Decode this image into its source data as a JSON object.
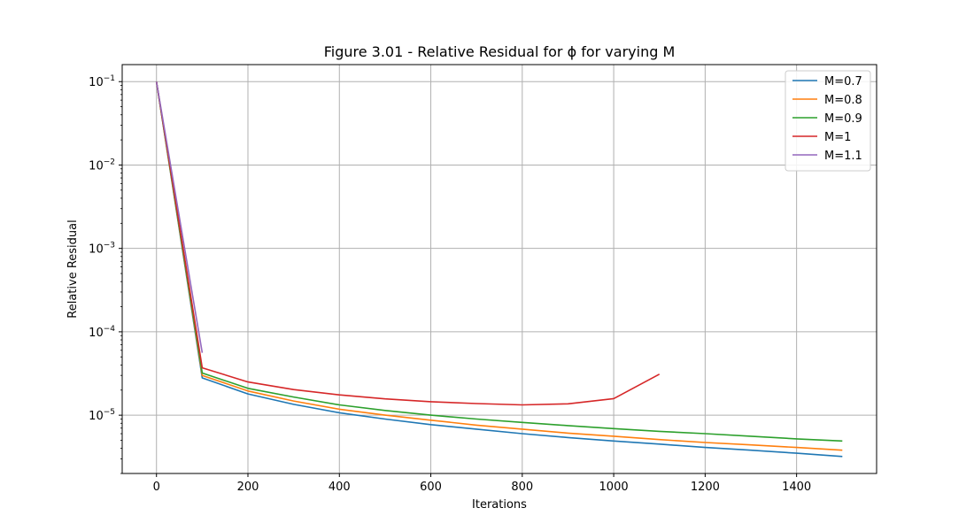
{
  "chart_data": {
    "type": "line",
    "title": "Figure 3.01 - Relative Residual for ϕ for varying M",
    "xlabel": "Iterations",
    "ylabel": "Relative Residual",
    "xlim": [
      -75,
      1575
    ],
    "ylim": [
      2e-06,
      0.16
    ],
    "yscale": "log",
    "grid": true,
    "legend_position": "top-right",
    "xticks": [
      0,
      200,
      400,
      600,
      800,
      1000,
      1200,
      1400
    ],
    "yticks": [
      {
        "value": 1e-05,
        "base": "10",
        "exp": "−5"
      },
      {
        "value": 0.0001,
        "base": "10",
        "exp": "−4"
      },
      {
        "value": 0.001,
        "base": "10",
        "exp": "−3"
      },
      {
        "value": 0.01,
        "base": "10",
        "exp": "−2"
      },
      {
        "value": 0.1,
        "base": "10",
        "exp": "−1"
      }
    ],
    "series": [
      {
        "name": "M=0.7",
        "color": "#1f77b4",
        "x": [
          0,
          100,
          200,
          300,
          400,
          500,
          600,
          700,
          800,
          900,
          1000,
          1100,
          1200,
          1300,
          1400,
          1500
        ],
        "y": [
          0.1,
          2.8e-05,
          1.8e-05,
          1.35e-05,
          1.07e-05,
          9e-06,
          7.7e-06,
          6.8e-06,
          6e-06,
          5.4e-06,
          4.9e-06,
          4.5e-06,
          4.1e-06,
          3.8e-06,
          3.5e-06,
          3.2e-06
        ]
      },
      {
        "name": "M=0.8",
        "color": "#ff7f0e",
        "x": [
          0,
          100,
          200,
          300,
          400,
          500,
          600,
          700,
          800,
          900,
          1000,
          1100,
          1200,
          1300,
          1400,
          1500
        ],
        "y": [
          0.1,
          3e-05,
          1.95e-05,
          1.48e-05,
          1.18e-05,
          1e-05,
          8.7e-06,
          7.6e-06,
          6.8e-06,
          6.1e-06,
          5.6e-06,
          5.1e-06,
          4.7e-06,
          4.4e-06,
          4.1e-06,
          3.8e-06
        ]
      },
      {
        "name": "M=0.9",
        "color": "#2ca02c",
        "x": [
          0,
          100,
          200,
          300,
          400,
          500,
          600,
          700,
          800,
          900,
          1000,
          1100,
          1200,
          1300,
          1400,
          1500
        ],
        "y": [
          0.1,
          3.2e-05,
          2.1e-05,
          1.65e-05,
          1.33e-05,
          1.14e-05,
          1e-05,
          9e-06,
          8.2e-06,
          7.5e-06,
          6.9e-06,
          6.4e-06,
          6e-06,
          5.6e-06,
          5.2e-06,
          4.9e-06
        ]
      },
      {
        "name": "M=1",
        "color": "#d62728",
        "x": [
          0,
          100,
          200,
          300,
          400,
          500,
          600,
          700,
          800,
          900,
          1000,
          1100
        ],
        "y": [
          0.1,
          3.7e-05,
          2.5e-05,
          2.03e-05,
          1.75e-05,
          1.57e-05,
          1.45e-05,
          1.38e-05,
          1.33e-05,
          1.37e-05,
          1.58e-05,
          3.1e-05
        ]
      },
      {
        "name": "M=1.1",
        "color": "#9467bd",
        "x": [
          0,
          100
        ],
        "y": [
          0.1,
          5.6e-05
        ]
      }
    ]
  }
}
